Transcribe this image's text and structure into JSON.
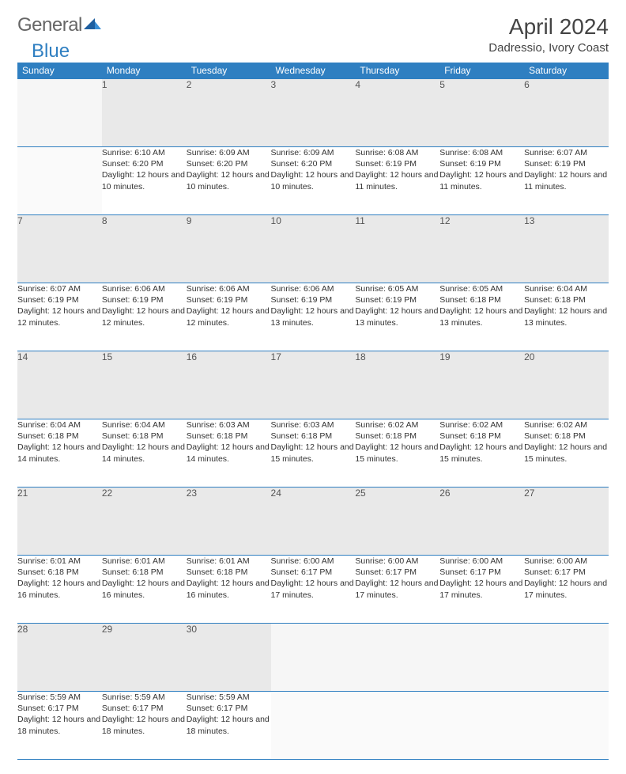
{
  "brand": {
    "general": "General",
    "blue": "Blue"
  },
  "title": "April 2024",
  "location": "Dadressio, Ivory Coast",
  "colors": {
    "header_bg": "#2f7fc1",
    "header_text": "#ffffff",
    "daynum_bg": "#e9e9e9",
    "border": "#2f7fc1",
    "text": "#333333"
  },
  "weekdays": [
    "Sunday",
    "Monday",
    "Tuesday",
    "Wednesday",
    "Thursday",
    "Friday",
    "Saturday"
  ],
  "weeks": [
    {
      "nums": [
        "",
        "1",
        "2",
        "3",
        "4",
        "5",
        "6"
      ],
      "cells": [
        null,
        {
          "sunrise": "Sunrise: 6:10 AM",
          "sunset": "Sunset: 6:20 PM",
          "daylight": "Daylight: 12 hours and 10 minutes."
        },
        {
          "sunrise": "Sunrise: 6:09 AM",
          "sunset": "Sunset: 6:20 PM",
          "daylight": "Daylight: 12 hours and 10 minutes."
        },
        {
          "sunrise": "Sunrise: 6:09 AM",
          "sunset": "Sunset: 6:20 PM",
          "daylight": "Daylight: 12 hours and 10 minutes."
        },
        {
          "sunrise": "Sunrise: 6:08 AM",
          "sunset": "Sunset: 6:19 PM",
          "daylight": "Daylight: 12 hours and 11 minutes."
        },
        {
          "sunrise": "Sunrise: 6:08 AM",
          "sunset": "Sunset: 6:19 PM",
          "daylight": "Daylight: 12 hours and 11 minutes."
        },
        {
          "sunrise": "Sunrise: 6:07 AM",
          "sunset": "Sunset: 6:19 PM",
          "daylight": "Daylight: 12 hours and 11 minutes."
        }
      ]
    },
    {
      "nums": [
        "7",
        "8",
        "9",
        "10",
        "11",
        "12",
        "13"
      ],
      "cells": [
        {
          "sunrise": "Sunrise: 6:07 AM",
          "sunset": "Sunset: 6:19 PM",
          "daylight": "Daylight: 12 hours and 12 minutes."
        },
        {
          "sunrise": "Sunrise: 6:06 AM",
          "sunset": "Sunset: 6:19 PM",
          "daylight": "Daylight: 12 hours and 12 minutes."
        },
        {
          "sunrise": "Sunrise: 6:06 AM",
          "sunset": "Sunset: 6:19 PM",
          "daylight": "Daylight: 12 hours and 12 minutes."
        },
        {
          "sunrise": "Sunrise: 6:06 AM",
          "sunset": "Sunset: 6:19 PM",
          "daylight": "Daylight: 12 hours and 13 minutes."
        },
        {
          "sunrise": "Sunrise: 6:05 AM",
          "sunset": "Sunset: 6:19 PM",
          "daylight": "Daylight: 12 hours and 13 minutes."
        },
        {
          "sunrise": "Sunrise: 6:05 AM",
          "sunset": "Sunset: 6:18 PM",
          "daylight": "Daylight: 12 hours and 13 minutes."
        },
        {
          "sunrise": "Sunrise: 6:04 AM",
          "sunset": "Sunset: 6:18 PM",
          "daylight": "Daylight: 12 hours and 13 minutes."
        }
      ]
    },
    {
      "nums": [
        "14",
        "15",
        "16",
        "17",
        "18",
        "19",
        "20"
      ],
      "cells": [
        {
          "sunrise": "Sunrise: 6:04 AM",
          "sunset": "Sunset: 6:18 PM",
          "daylight": "Daylight: 12 hours and 14 minutes."
        },
        {
          "sunrise": "Sunrise: 6:04 AM",
          "sunset": "Sunset: 6:18 PM",
          "daylight": "Daylight: 12 hours and 14 minutes."
        },
        {
          "sunrise": "Sunrise: 6:03 AM",
          "sunset": "Sunset: 6:18 PM",
          "daylight": "Daylight: 12 hours and 14 minutes."
        },
        {
          "sunrise": "Sunrise: 6:03 AM",
          "sunset": "Sunset: 6:18 PM",
          "daylight": "Daylight: 12 hours and 15 minutes."
        },
        {
          "sunrise": "Sunrise: 6:02 AM",
          "sunset": "Sunset: 6:18 PM",
          "daylight": "Daylight: 12 hours and 15 minutes."
        },
        {
          "sunrise": "Sunrise: 6:02 AM",
          "sunset": "Sunset: 6:18 PM",
          "daylight": "Daylight: 12 hours and 15 minutes."
        },
        {
          "sunrise": "Sunrise: 6:02 AM",
          "sunset": "Sunset: 6:18 PM",
          "daylight": "Daylight: 12 hours and 15 minutes."
        }
      ]
    },
    {
      "nums": [
        "21",
        "22",
        "23",
        "24",
        "25",
        "26",
        "27"
      ],
      "cells": [
        {
          "sunrise": "Sunrise: 6:01 AM",
          "sunset": "Sunset: 6:18 PM",
          "daylight": "Daylight: 12 hours and 16 minutes."
        },
        {
          "sunrise": "Sunrise: 6:01 AM",
          "sunset": "Sunset: 6:18 PM",
          "daylight": "Daylight: 12 hours and 16 minutes."
        },
        {
          "sunrise": "Sunrise: 6:01 AM",
          "sunset": "Sunset: 6:18 PM",
          "daylight": "Daylight: 12 hours and 16 minutes."
        },
        {
          "sunrise": "Sunrise: 6:00 AM",
          "sunset": "Sunset: 6:17 PM",
          "daylight": "Daylight: 12 hours and 17 minutes."
        },
        {
          "sunrise": "Sunrise: 6:00 AM",
          "sunset": "Sunset: 6:17 PM",
          "daylight": "Daylight: 12 hours and 17 minutes."
        },
        {
          "sunrise": "Sunrise: 6:00 AM",
          "sunset": "Sunset: 6:17 PM",
          "daylight": "Daylight: 12 hours and 17 minutes."
        },
        {
          "sunrise": "Sunrise: 6:00 AM",
          "sunset": "Sunset: 6:17 PM",
          "daylight": "Daylight: 12 hours and 17 minutes."
        }
      ]
    },
    {
      "nums": [
        "28",
        "29",
        "30",
        "",
        "",
        "",
        ""
      ],
      "cells": [
        {
          "sunrise": "Sunrise: 5:59 AM",
          "sunset": "Sunset: 6:17 PM",
          "daylight": "Daylight: 12 hours and 18 minutes."
        },
        {
          "sunrise": "Sunrise: 5:59 AM",
          "sunset": "Sunset: 6:17 PM",
          "daylight": "Daylight: 12 hours and 18 minutes."
        },
        {
          "sunrise": "Sunrise: 5:59 AM",
          "sunset": "Sunset: 6:17 PM",
          "daylight": "Daylight: 12 hours and 18 minutes."
        },
        null,
        null,
        null,
        null
      ]
    }
  ]
}
